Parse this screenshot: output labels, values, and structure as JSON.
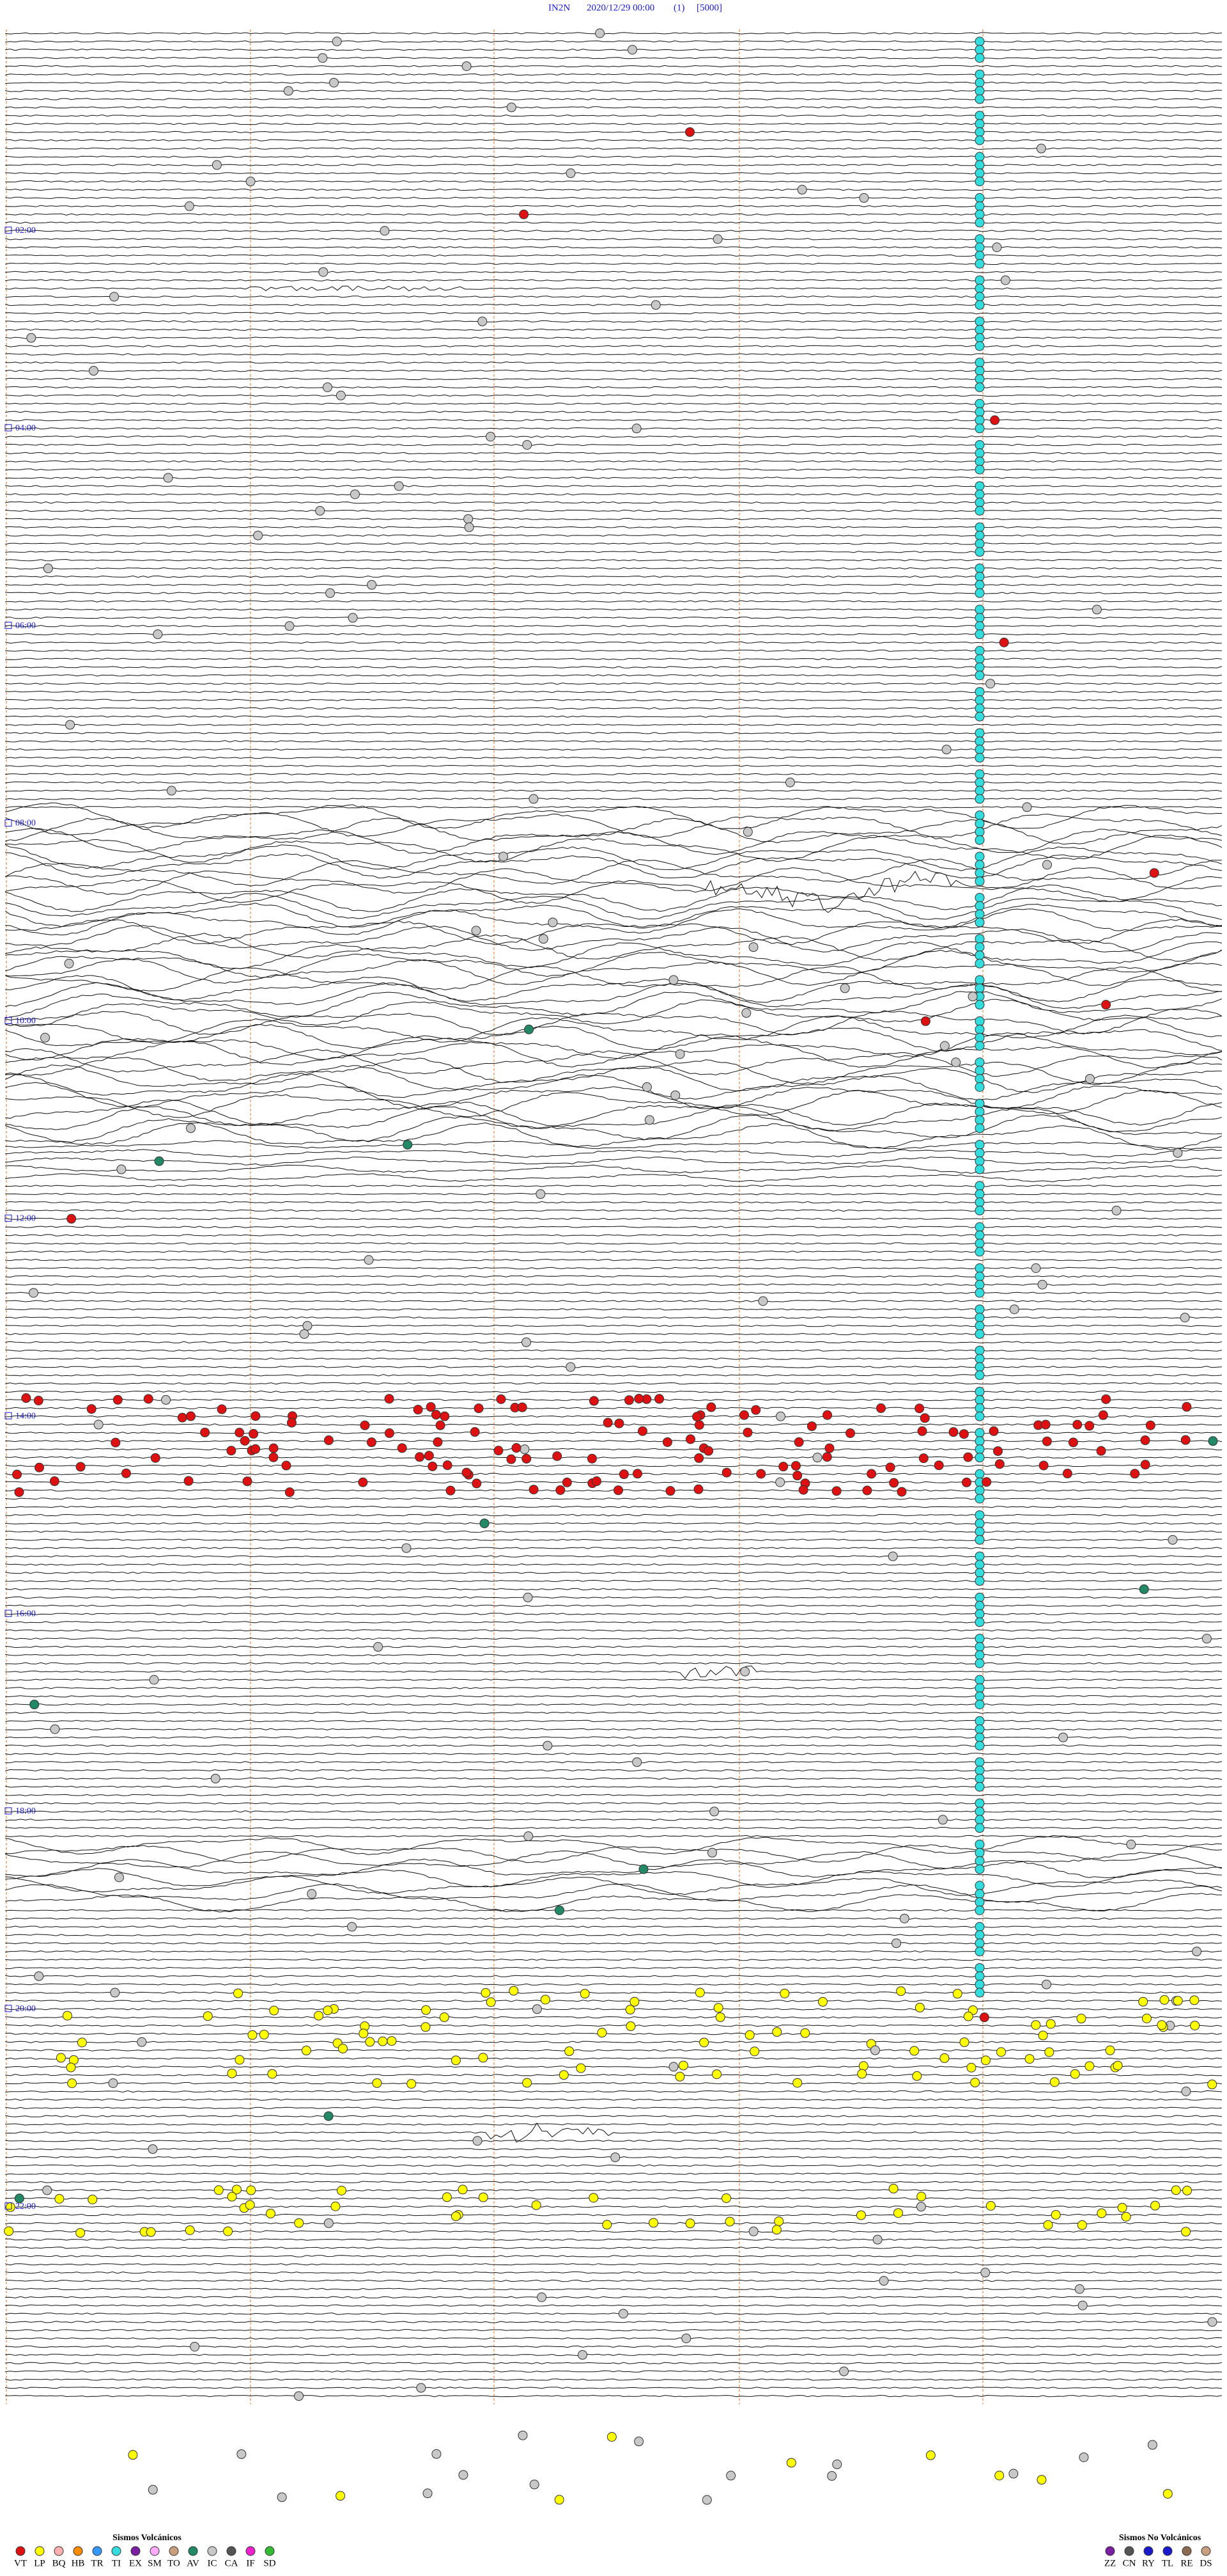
{
  "header": {
    "station": "IN2N",
    "datetime": "2020/12/29 00:00",
    "channel": "(1)",
    "scale": "[5000]"
  },
  "time_labels": [
    "02:00",
    "04:00",
    "06:00",
    "08:00",
    "10:00",
    "12:00",
    "14:00",
    "16:00",
    "18:00",
    "20:00",
    "22:00"
  ],
  "legend": {
    "volcanic": {
      "title": "Sismos Volcánicos",
      "items": [
        {
          "label": "VT",
          "color": "#dd1111"
        },
        {
          "label": "LP",
          "color": "#ffff00"
        },
        {
          "label": "BQ",
          "color": "#ffb0b0"
        },
        {
          "label": "HB",
          "color": "#ff8c00"
        },
        {
          "label": "TR",
          "color": "#3399ff"
        },
        {
          "label": "TI",
          "color": "#33dddd"
        },
        {
          "label": "EX",
          "color": "#7a1fa2"
        },
        {
          "label": "SM",
          "color": "#ffaaff"
        },
        {
          "label": "TO",
          "color": "#c8a080"
        },
        {
          "label": "AV",
          "color": "#228866"
        },
        {
          "label": "IC",
          "color": "#c8c8c8"
        },
        {
          "label": "CA",
          "color": "#555555"
        },
        {
          "label": "IF",
          "color": "#ee22cc"
        },
        {
          "label": "SD",
          "color": "#33bb33"
        }
      ]
    },
    "nonvolcanic": {
      "title": "Sismos No Volcánicos",
      "items": [
        {
          "label": "ZZ",
          "color": "#7a1fa2"
        },
        {
          "label": "CN",
          "color": "#555555"
        },
        {
          "label": "RY",
          "color": "#1a1acc"
        },
        {
          "label": "TL",
          "color": "#1a1acc"
        },
        {
          "label": "RE",
          "color": "#8a6a50"
        },
        {
          "label": "DS",
          "color": "#c8a080"
        }
      ]
    }
  }
}
